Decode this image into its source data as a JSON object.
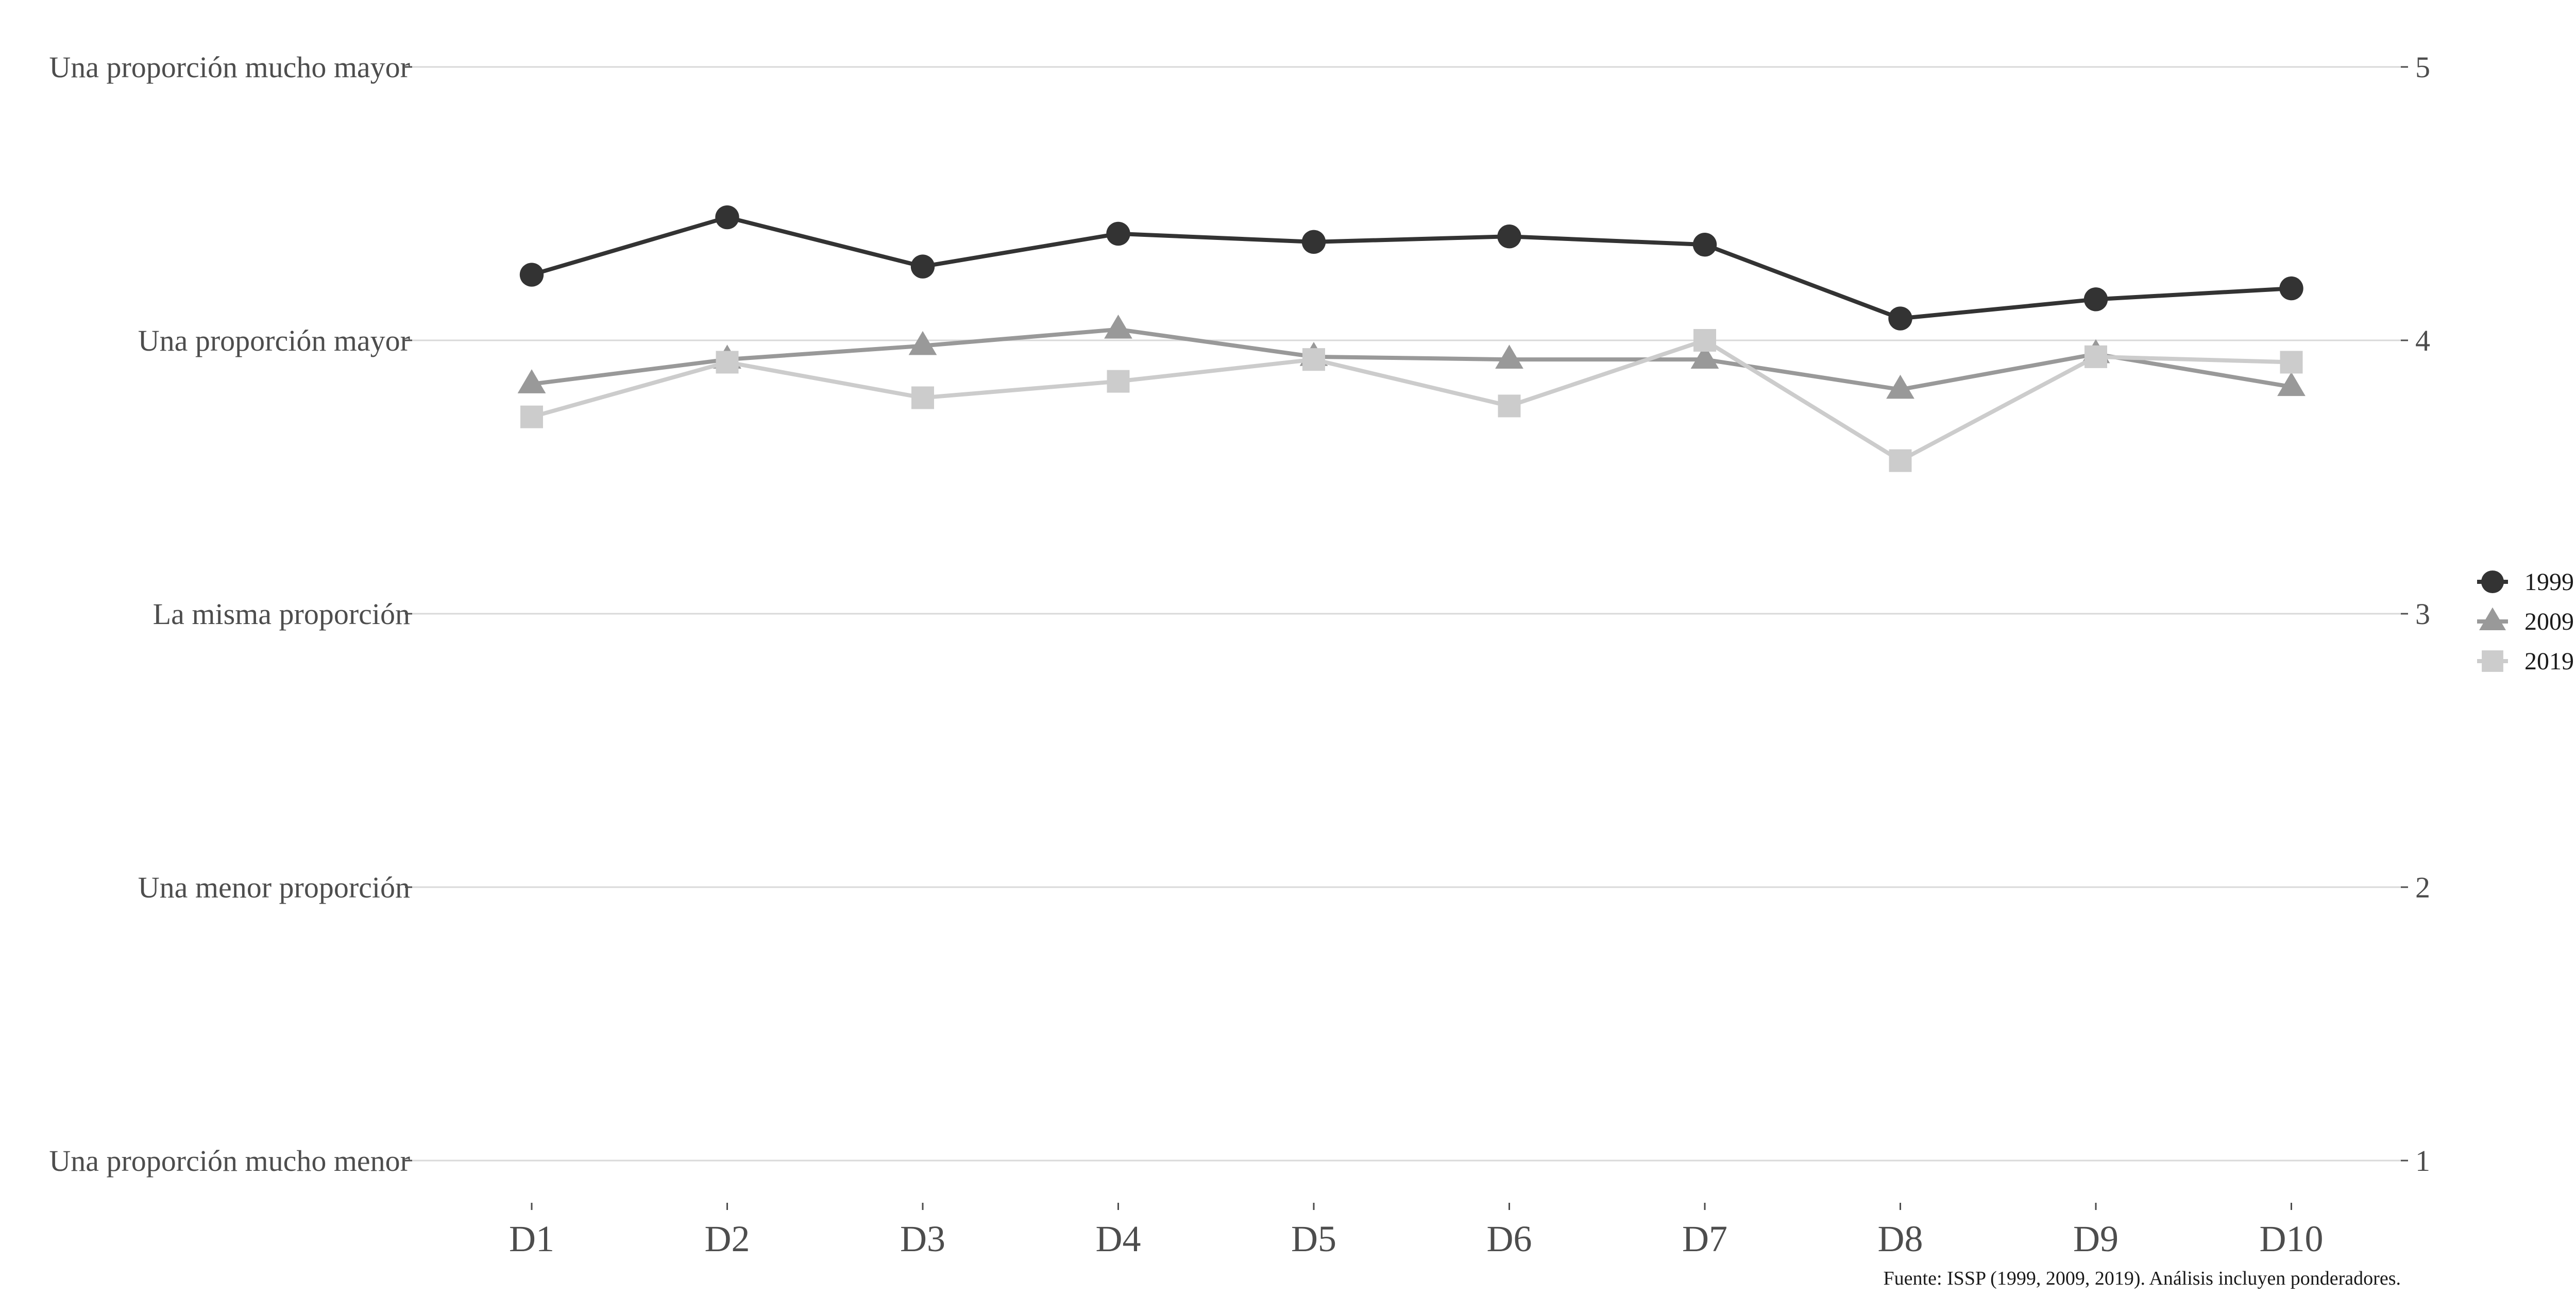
{
  "chart_data": {
    "type": "line",
    "categories": [
      "D1",
      "D2",
      "D3",
      "D4",
      "D5",
      "D6",
      "D7",
      "D8",
      "D9",
      "D10"
    ],
    "ylim": [
      1,
      5
    ],
    "yticks": [
      1,
      2,
      3,
      4,
      5
    ],
    "yticklabels_left": [
      "Una proporción mucho menor",
      "Una menor proporción",
      "La misma proporción",
      "Una proporción mayor",
      "Una proporción mucho mayor"
    ],
    "yticklabels_right": [
      "1",
      "2",
      "3",
      "4",
      "5"
    ],
    "grid": "horizontal",
    "legend_position": "right",
    "series": [
      {
        "name": "1999",
        "marker": "circle",
        "color": "#333333",
        "values": [
          4.24,
          4.45,
          4.27,
          4.39,
          4.36,
          4.38,
          4.35,
          4.08,
          4.15,
          4.19
        ]
      },
      {
        "name": "2009",
        "marker": "triangle",
        "color": "#999999",
        "values": [
          3.84,
          3.93,
          3.98,
          4.04,
          3.94,
          3.93,
          3.93,
          3.82,
          3.95,
          3.83
        ]
      },
      {
        "name": "2019",
        "marker": "square",
        "color": "#cccccc",
        "values": [
          3.72,
          3.92,
          3.79,
          3.85,
          3.93,
          3.76,
          4.0,
          3.56,
          3.94,
          3.92
        ]
      }
    ],
    "caption": "Fuente: ISSP (1999, 2009, 2019). Análisis incluyen ponderadores."
  }
}
